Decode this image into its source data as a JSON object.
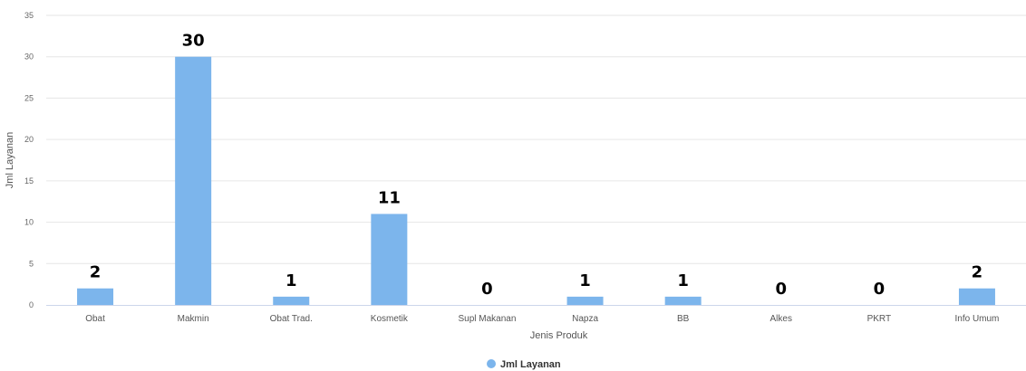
{
  "chart_data": {
    "type": "bar",
    "categories": [
      "Obat",
      "Makmin",
      "Obat Trad.",
      "Kosmetik",
      "Supl Makanan",
      "Napza",
      "BB",
      "Alkes",
      "PKRT",
      "Info Umum"
    ],
    "series": [
      {
        "name": "Jml Layanan",
        "values": [
          2,
          30,
          1,
          11,
          0,
          1,
          1,
          0,
          0,
          2
        ]
      }
    ],
    "xlabel": "Jenis Produk",
    "ylabel": "Jml Layanan",
    "ylim": [
      0,
      35
    ],
    "yticks": [
      0,
      5,
      10,
      15,
      20,
      25,
      30,
      35
    ],
    "grid": true,
    "legend_position": "bottom-center",
    "colors": {
      "bar": "#7cb5ec",
      "grid": "#e6e6e6",
      "axis": "#ccd6eb"
    }
  }
}
